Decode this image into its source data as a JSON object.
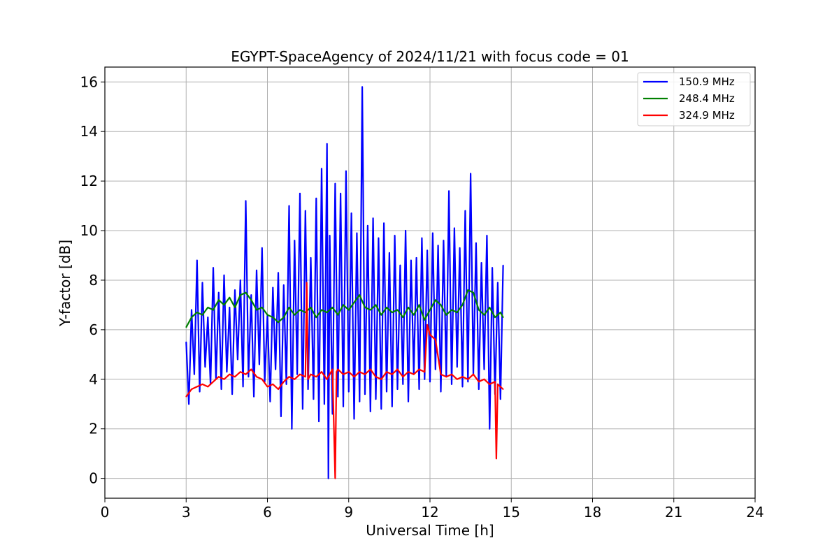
{
  "chart_data": {
    "type": "line",
    "title": "EGYPT-SpaceAgency of 2024/11/21 with focus code = 01",
    "xlabel": "Universal Time [h]",
    "ylabel": "Y-factor [dB]",
    "xlim": [
      0,
      24
    ],
    "ylim": [
      -0.8,
      16.6
    ],
    "xticks": [
      0,
      3,
      6,
      9,
      12,
      15,
      18,
      21,
      24
    ],
    "yticks": [
      0,
      2,
      4,
      6,
      8,
      10,
      12,
      14,
      16
    ],
    "grid": true,
    "legend_position": "top-right",
    "series": [
      {
        "name": "150.9 MHz",
        "color": "#0000ff",
        "x": [
          3.0,
          3.1,
          3.2,
          3.3,
          3.4,
          3.5,
          3.6,
          3.7,
          3.8,
          3.9,
          4.0,
          4.1,
          4.2,
          4.3,
          4.4,
          4.5,
          4.6,
          4.7,
          4.8,
          4.9,
          5.0,
          5.1,
          5.2,
          5.3,
          5.4,
          5.5,
          5.6,
          5.7,
          5.8,
          5.9,
          6.0,
          6.1,
          6.2,
          6.3,
          6.4,
          6.5,
          6.6,
          6.7,
          6.8,
          6.9,
          7.0,
          7.1,
          7.2,
          7.3,
          7.4,
          7.5,
          7.6,
          7.7,
          7.8,
          7.9,
          8.0,
          8.1,
          8.2,
          8.25,
          8.3,
          8.4,
          8.5,
          8.6,
          8.7,
          8.8,
          8.9,
          9.0,
          9.1,
          9.2,
          9.3,
          9.4,
          9.5,
          9.6,
          9.7,
          9.8,
          9.9,
          10.0,
          10.1,
          10.2,
          10.3,
          10.4,
          10.5,
          10.6,
          10.7,
          10.8,
          10.9,
          11.0,
          11.1,
          11.2,
          11.3,
          11.4,
          11.5,
          11.6,
          11.7,
          11.8,
          11.9,
          12.0,
          12.1,
          12.2,
          12.3,
          12.4,
          12.5,
          12.6,
          12.7,
          12.8,
          12.9,
          13.0,
          13.1,
          13.2,
          13.3,
          13.4,
          13.5,
          13.6,
          13.7,
          13.8,
          13.9,
          14.0,
          14.1,
          14.2,
          14.3,
          14.4,
          14.5,
          14.6,
          14.7
        ],
        "y": [
          5.5,
          3.0,
          6.8,
          4.2,
          8.8,
          3.5,
          7.9,
          4.5,
          6.5,
          3.8,
          8.5,
          4.0,
          7.5,
          3.6,
          8.2,
          4.3,
          6.9,
          3.4,
          7.6,
          4.8,
          8.0,
          3.7,
          11.2,
          4.1,
          7.4,
          3.3,
          8.4,
          4.6,
          9.3,
          3.9,
          6.6,
          3.1,
          7.7,
          4.4,
          8.3,
          2.5,
          7.8,
          3.8,
          11.0,
          2.0,
          9.6,
          4.2,
          11.5,
          2.8,
          10.8,
          3.6,
          8.9,
          3.2,
          11.3,
          2.3,
          12.5,
          3.0,
          13.5,
          0.0,
          9.8,
          2.6,
          11.9,
          3.3,
          11.5,
          2.9,
          12.4,
          3.5,
          10.7,
          2.4,
          9.9,
          3.1,
          15.8,
          3.4,
          10.2,
          2.7,
          10.5,
          3.2,
          9.7,
          2.8,
          10.3,
          3.5,
          9.1,
          2.9,
          9.8,
          3.6,
          8.6,
          3.8,
          10.0,
          3.1,
          8.8,
          4.2,
          8.9,
          3.6,
          9.7,
          4.0,
          9.2,
          3.9,
          9.9,
          4.4,
          9.4,
          3.5,
          9.6,
          4.1,
          11.6,
          3.8,
          10.1,
          4.5,
          9.3,
          3.7,
          10.8,
          3.9,
          12.3,
          4.2,
          9.5,
          3.6,
          8.7,
          4.4,
          9.8,
          2.0,
          8.5,
          3.4,
          7.9,
          3.2,
          8.6
        ],
        "description_hint": ""
      },
      {
        "name": "248.4 MHz",
        "color": "#008000",
        "x": [
          3.0,
          3.2,
          3.4,
          3.6,
          3.8,
          4.0,
          4.2,
          4.4,
          4.6,
          4.8,
          5.0,
          5.2,
          5.4,
          5.6,
          5.8,
          6.0,
          6.2,
          6.4,
          6.6,
          6.8,
          7.0,
          7.2,
          7.4,
          7.6,
          7.8,
          8.0,
          8.2,
          8.4,
          8.6,
          8.8,
          9.0,
          9.2,
          9.4,
          9.6,
          9.8,
          10.0,
          10.2,
          10.4,
          10.6,
          10.8,
          11.0,
          11.2,
          11.4,
          11.6,
          11.8,
          12.0,
          12.2,
          12.4,
          12.6,
          12.8,
          13.0,
          13.2,
          13.4,
          13.6,
          13.8,
          14.0,
          14.2,
          14.4,
          14.6,
          14.7
        ],
        "y": [
          6.1,
          6.5,
          6.7,
          6.6,
          6.9,
          6.8,
          7.2,
          7.0,
          7.3,
          6.9,
          7.4,
          7.5,
          7.2,
          6.8,
          6.9,
          6.6,
          6.5,
          6.3,
          6.5,
          6.9,
          6.6,
          6.8,
          6.7,
          6.9,
          6.5,
          6.8,
          6.7,
          6.9,
          6.6,
          7.0,
          6.8,
          7.1,
          7.4,
          6.9,
          6.8,
          7.0,
          6.6,
          6.9,
          6.7,
          6.8,
          6.5,
          6.9,
          6.6,
          7.0,
          6.4,
          6.8,
          7.2,
          7.0,
          6.6,
          6.8,
          6.7,
          7.0,
          7.6,
          7.5,
          6.8,
          6.6,
          6.9,
          6.5,
          6.7,
          6.5
        ]
      },
      {
        "name": "324.9 MHz",
        "color": "#ff0000",
        "x": [
          3.0,
          3.2,
          3.4,
          3.6,
          3.8,
          4.0,
          4.2,
          4.4,
          4.6,
          4.8,
          5.0,
          5.2,
          5.4,
          5.6,
          5.8,
          6.0,
          6.2,
          6.4,
          6.6,
          6.8,
          7.0,
          7.2,
          7.4,
          7.45,
          7.5,
          7.6,
          7.8,
          8.0,
          8.2,
          8.4,
          8.5,
          8.55,
          8.6,
          8.8,
          9.0,
          9.2,
          9.4,
          9.6,
          9.8,
          10.0,
          10.2,
          10.4,
          10.6,
          10.8,
          11.0,
          11.2,
          11.4,
          11.6,
          11.8,
          11.9,
          12.0,
          12.2,
          12.4,
          12.6,
          12.8,
          13.0,
          13.2,
          13.4,
          13.6,
          13.8,
          14.0,
          14.2,
          14.4,
          14.45,
          14.5,
          14.7
        ],
        "y": [
          3.3,
          3.6,
          3.7,
          3.8,
          3.7,
          3.9,
          4.1,
          4.0,
          4.2,
          4.1,
          4.3,
          4.2,
          4.4,
          4.1,
          4.0,
          3.7,
          3.8,
          3.6,
          3.9,
          4.1,
          4.0,
          4.2,
          4.1,
          7.9,
          4.0,
          4.2,
          4.1,
          4.3,
          4.0,
          4.4,
          0.0,
          4.3,
          4.4,
          4.2,
          4.3,
          4.1,
          4.3,
          4.2,
          4.4,
          4.1,
          4.0,
          4.3,
          4.2,
          4.4,
          4.1,
          4.3,
          4.2,
          4.4,
          4.3,
          6.2,
          5.8,
          5.6,
          4.2,
          4.1,
          4.2,
          4.0,
          4.1,
          4.0,
          4.2,
          3.9,
          4.0,
          3.8,
          3.9,
          0.8,
          3.8,
          3.6
        ]
      }
    ]
  }
}
